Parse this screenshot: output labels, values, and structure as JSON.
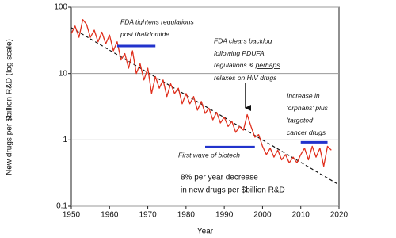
{
  "chart_data": {
    "type": "line",
    "x_label": "Year",
    "y_label": "New drugs per $billion R&D (log scale)",
    "log_y": true,
    "grid": true,
    "xlim": [
      1950,
      2020
    ],
    "xticks": [
      1950,
      1960,
      1970,
      1980,
      1990,
      2000,
      2010,
      2020
    ],
    "ylim": [
      0.1,
      100
    ],
    "yticks": [
      0.1,
      1,
      10,
      100
    ],
    "color": "#e0301e",
    "x": [
      1950,
      1951,
      1952,
      1953,
      1954,
      1955,
      1956,
      1957,
      1958,
      1959,
      1960,
      1961,
      1962,
      1963,
      1964,
      1965,
      1966,
      1967,
      1968,
      1969,
      1970,
      1971,
      1972,
      1973,
      1974,
      1975,
      1976,
      1977,
      1978,
      1979,
      1980,
      1981,
      1982,
      1983,
      1984,
      1985,
      1986,
      1987,
      1988,
      1989,
      1990,
      1991,
      1992,
      1993,
      1994,
      1995,
      1996,
      1997,
      1998,
      1999,
      2000,
      2001,
      2002,
      2003,
      2004,
      2005,
      2006,
      2007,
      2008,
      2009,
      2010,
      2011,
      2012,
      2013,
      2014,
      2015,
      2016,
      2017,
      2018
    ],
    "values": [
      40,
      52,
      35,
      65,
      55,
      35,
      45,
      30,
      42,
      28,
      38,
      22,
      30,
      16,
      20,
      12,
      22,
      10,
      14,
      8,
      12,
      5,
      9,
      6,
      8,
      4.5,
      7,
      5,
      6,
      3.5,
      5,
      3.5,
      4.5,
      2.8,
      3.8,
      2.5,
      3,
      2,
      2.6,
      1.8,
      2.2,
      1.6,
      1.9,
      1.3,
      1.6,
      1.4,
      2.4,
      1.6,
      1.1,
      1.2,
      0.8,
      0.6,
      0.75,
      0.55,
      0.7,
      0.5,
      0.6,
      0.45,
      0.55,
      0.45,
      0.6,
      0.75,
      0.5,
      0.8,
      0.55,
      0.75,
      0.4,
      0.8,
      0.7
    ],
    "trend": {
      "x": [
        1950,
        2020
      ],
      "values": [
        49,
        0.21
      ],
      "color": "#111111",
      "dashed": true
    },
    "annotations": [
      {
        "lines": [
          "FDA tightens regulations",
          "post thalidomide"
        ],
        "x_range": [
          1962,
          1972
        ],
        "value": 26,
        "color": "#2233cc"
      },
      {
        "lines": [
          "FDA clears backlog",
          "following PDUFA",
          "regulations &",
          "relaxes on HIV drugs"
        ],
        "emphasis": "perhaps"
      },
      {
        "lines": [
          "Increase in",
          "'orphans' plus",
          "'targeted'",
          "cancer drugs"
        ],
        "x_range": [
          2010,
          2017
        ],
        "value": 0.92,
        "color": "#2233cc"
      },
      {
        "lines": [
          "First wave of biotech"
        ],
        "x_range": [
          1985,
          1998
        ],
        "value": 0.78,
        "color": "#2233cc"
      }
    ],
    "note": [
      "8% per year decrease",
      "in new drugs per $billion R&D"
    ]
  }
}
